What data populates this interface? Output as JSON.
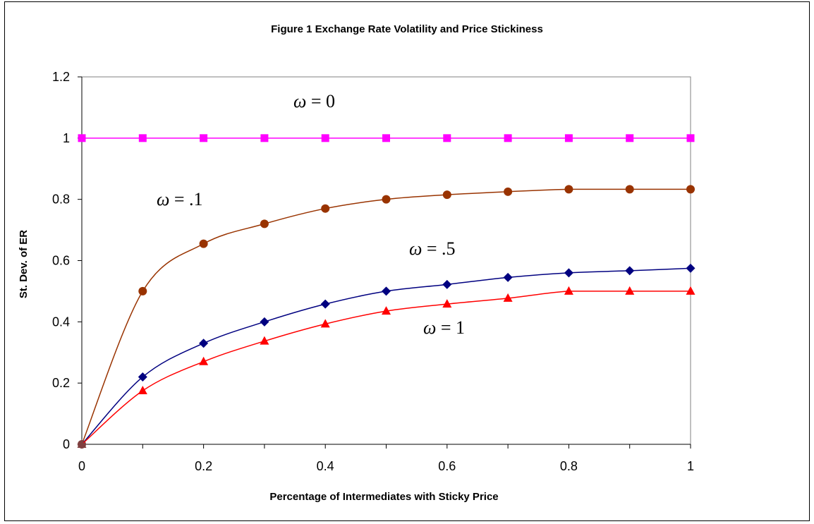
{
  "chart_data": {
    "type": "line",
    "title": "Figure 1 Exchange Rate Volatility and Price Stickiness",
    "xlabel": "Percentage of Intermediates with Sticky Price",
    "ylabel": "St. Dev. of ER",
    "xlim": [
      0,
      1
    ],
    "ylim": [
      0,
      1.2
    ],
    "xticks": [
      "0",
      "0.2",
      "0.4",
      "0.6",
      "0.8",
      "1"
    ],
    "xtick_values": [
      0,
      0.2,
      0.4,
      0.6,
      0.8,
      1
    ],
    "yticks": [
      "0",
      "0.2",
      "0.4",
      "0.6",
      "0.8",
      "1",
      "1.2"
    ],
    "ytick_values": [
      0,
      0.2,
      0.4,
      0.6,
      0.8,
      1,
      1.2
    ],
    "grid": false,
    "x": [
      0,
      0.1,
      0.2,
      0.3,
      0.4,
      0.5,
      0.6,
      0.7,
      0.8,
      0.9,
      1
    ],
    "series": [
      {
        "label_sym": "ω",
        "label_rest": " = 0",
        "color": "#ff00ff",
        "marker": "square",
        "values": [
          1,
          1,
          1,
          1,
          1,
          1,
          1,
          1,
          1,
          1,
          1
        ]
      },
      {
        "label_sym": "ω",
        "label_rest": " = .1",
        "color": "#993300",
        "marker": "circle",
        "values": [
          0,
          0.5,
          0.655,
          0.72,
          0.77,
          0.8,
          0.815,
          0.825,
          0.833,
          0.833,
          0.833
        ]
      },
      {
        "label_sym": "ω",
        "label_rest": " = .5",
        "color": "#000080",
        "marker": "diamond",
        "values": [
          0,
          0.22,
          0.33,
          0.4,
          0.458,
          0.5,
          0.522,
          0.545,
          0.56,
          0.567,
          0.575
        ]
      },
      {
        "label_sym": "ω",
        "label_rest": " = 1",
        "color": "#ff0000",
        "marker": "triangle",
        "values": [
          0,
          0.175,
          0.27,
          0.337,
          0.393,
          0.435,
          0.458,
          0.477,
          0.5,
          0.5,
          0.5
        ]
      }
    ]
  }
}
